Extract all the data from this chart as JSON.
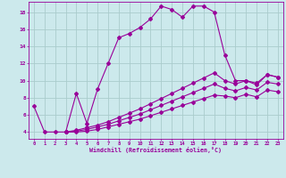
{
  "xlabel": "Windchill (Refroidissement éolien,°C)",
  "bg_color": "#cce9ec",
  "line_color": "#990099",
  "grid_color": "#aacccc",
  "xlim": [
    -0.5,
    23.5
  ],
  "ylim": [
    3.2,
    19.2
  ],
  "yticks": [
    4,
    6,
    8,
    10,
    12,
    14,
    16,
    18
  ],
  "xticks": [
    0,
    1,
    2,
    3,
    4,
    5,
    6,
    7,
    8,
    9,
    10,
    11,
    12,
    13,
    14,
    15,
    16,
    17,
    18,
    19,
    20,
    21,
    22,
    23
  ],
  "series": [
    {
      "x": [
        0,
        1,
        2,
        3,
        4,
        5,
        6,
        7,
        8,
        9,
        10,
        11,
        12,
        13,
        14,
        15,
        16,
        17,
        18,
        19,
        20,
        21,
        22,
        23
      ],
      "y": [
        7,
        4,
        4,
        4,
        8.5,
        5,
        9,
        12,
        15,
        15.5,
        16.2,
        17.2,
        18.7,
        18.3,
        17.4,
        18.7,
        18.7,
        18.0,
        13.0,
        10.0,
        10.0,
        9.5,
        10.7,
        10.4
      ]
    },
    {
      "x": [
        3,
        4,
        5,
        6,
        7,
        8,
        9,
        10,
        11,
        12,
        13,
        14,
        15,
        16,
        17,
        18,
        19,
        20,
        21,
        22,
        23
      ],
      "y": [
        4.0,
        4.2,
        4.5,
        4.8,
        5.2,
        5.7,
        6.2,
        6.7,
        7.3,
        7.9,
        8.5,
        9.1,
        9.7,
        10.3,
        10.9,
        10.0,
        9.6,
        10.0,
        9.7,
        10.7,
        10.4
      ]
    },
    {
      "x": [
        3,
        4,
        5,
        6,
        7,
        8,
        9,
        10,
        11,
        12,
        13,
        14,
        15,
        16,
        17,
        18,
        19,
        20,
        21,
        22,
        23
      ],
      "y": [
        4.0,
        4.1,
        4.3,
        4.6,
        4.9,
        5.3,
        5.7,
        6.1,
        6.6,
        7.1,
        7.6,
        8.1,
        8.6,
        9.1,
        9.6,
        9.1,
        8.8,
        9.2,
        8.9,
        9.8,
        9.6
      ]
    },
    {
      "x": [
        3,
        4,
        5,
        6,
        7,
        8,
        9,
        10,
        11,
        12,
        13,
        14,
        15,
        16,
        17,
        18,
        19,
        20,
        21,
        22,
        23
      ],
      "y": [
        4.0,
        4.0,
        4.1,
        4.3,
        4.6,
        4.9,
        5.2,
        5.5,
        5.9,
        6.3,
        6.7,
        7.1,
        7.5,
        7.9,
        8.3,
        8.2,
        8.0,
        8.4,
        8.1,
        8.9,
        8.7
      ]
    }
  ]
}
